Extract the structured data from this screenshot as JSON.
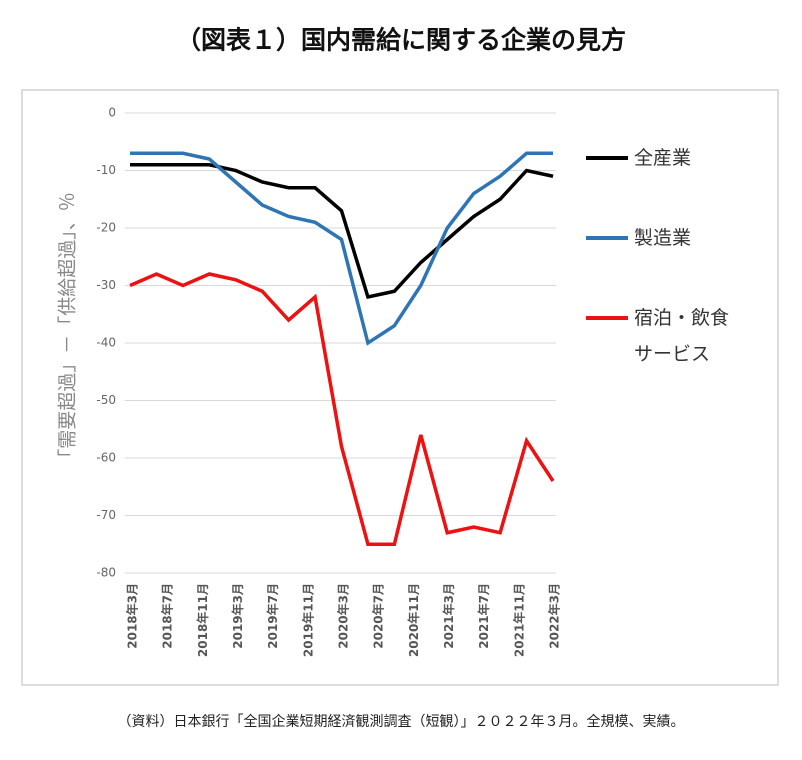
{
  "chart_data": {
    "type": "line",
    "title": "（図表１）国内需給に関する企業の見方",
    "y_label": "「需要超過」－「供給超過」、％",
    "x_labels": [
      "2018年3月",
      "2018年7月",
      "2018年11月",
      "2019年3月",
      "2019年7月",
      "2019年11月",
      "2020年3月",
      "2020年7月",
      "2020年11月",
      "2021年3月",
      "2021年7月",
      "2021年11月",
      "2022年3月"
    ],
    "series": [
      {
        "name": "全産業",
        "color": "#000000",
        "values": [
          -9,
          -9,
          -9,
          -9,
          -10,
          -12,
          -13,
          -13,
          -17,
          -32,
          -31,
          -26,
          -22,
          -18,
          -15,
          -10,
          -11
        ]
      },
      {
        "name": "製造業",
        "color": "#2e75b6",
        "values": [
          -7,
          -7,
          -7,
          -8,
          -12,
          -16,
          -18,
          -19,
          -22,
          -40,
          -37,
          -30,
          -20,
          -14,
          -11,
          -7,
          -7
        ]
      },
      {
        "name": "宿泊・飲食サービス",
        "color": "#ee1111",
        "values": [
          -30,
          -28,
          -30,
          -28,
          -29,
          -31,
          -36,
          -32,
          -58,
          -75,
          -75,
          -56,
          -73,
          -72,
          -73,
          -57,
          -64
        ]
      }
    ],
    "ylim": [
      -80,
      0
    ],
    "yticks": [
      0,
      -10,
      -20,
      -30,
      -40,
      -50,
      -60,
      -70,
      -80
    ],
    "grid": true,
    "source": "（資料）日本銀行「全国企業短期経済観測調査（短観）」２０２２年３月。全規模、実績。"
  }
}
